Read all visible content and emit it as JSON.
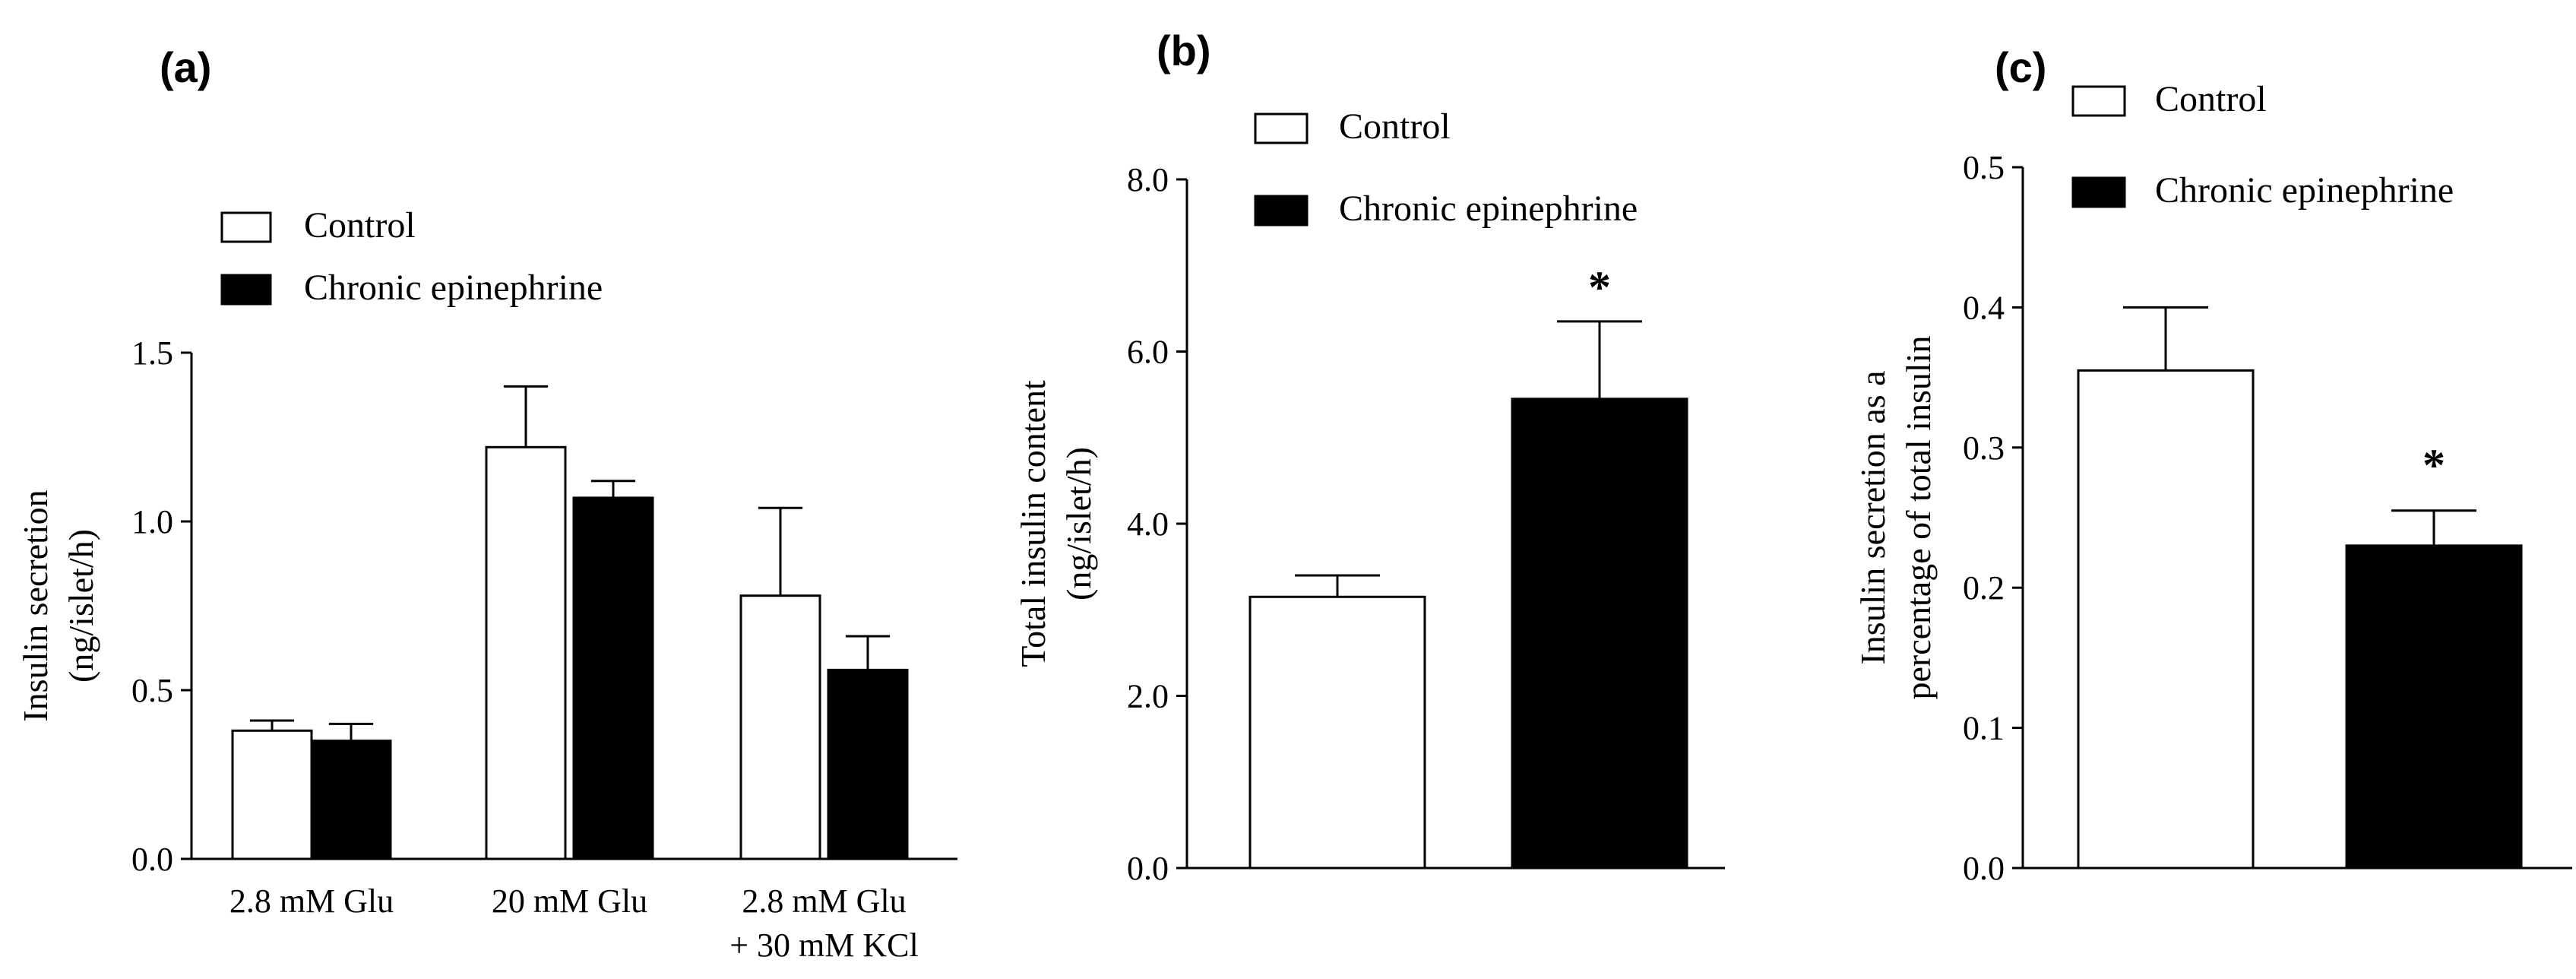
{
  "chart_data": [
    {
      "type": "bar",
      "panel": "(a)",
      "categories": [
        [
          "2.8 mM Glu"
        ],
        [
          "20 mM Glu"
        ],
        [
          "2.8 mM Glu",
          "+ 30 mM KCl"
        ]
      ],
      "ylabel": [
        "Insulin secretion",
        "(ng/islet/h)"
      ],
      "xlabel": "",
      "ylim": [
        0,
        1.5
      ],
      "yticks": [
        "0.0",
        "0.5",
        "1.0",
        "1.5"
      ],
      "legend": {
        "placement": "top-left"
      },
      "series": [
        {
          "name": "Control",
          "fill": "#ffffff",
          "values": [
            0.38,
            1.22,
            0.78
          ],
          "errors": [
            0.03,
            0.18,
            0.26
          ]
        },
        {
          "name": "Chronic epinephrine",
          "fill": "#000000",
          "values": [
            0.35,
            1.07,
            0.56
          ],
          "errors": [
            0.05,
            0.05,
            0.1
          ]
        }
      ],
      "annotations": []
    },
    {
      "type": "bar",
      "panel": "(b)",
      "categories": [
        [
          "Control"
        ],
        [
          "Chronic epinephrine"
        ]
      ],
      "ylabel": [
        "Total insulin content",
        "(ng/islet/h)"
      ],
      "xlabel": "",
      "ylim": [
        0,
        8
      ],
      "yticks": [
        "0.0",
        "2.0",
        "4.0",
        "6.0",
        "8.0"
      ],
      "legend": {
        "placement": "top-left"
      },
      "series": [
        {
          "name": "Control",
          "fill": "#ffffff",
          "values": [
            3.15,
            null
          ],
          "errors": [
            0.25,
            null
          ]
        },
        {
          "name": "Chronic epinephrine",
          "fill": "#000000",
          "values": [
            null,
            5.45
          ],
          "errors": [
            null,
            0.9
          ]
        }
      ],
      "annotations": [
        {
          "text": "*",
          "category_index": 1
        }
      ]
    },
    {
      "type": "bar",
      "panel": "(c)",
      "categories": [
        [
          "Control"
        ],
        [
          "Chronic epinephrine"
        ]
      ],
      "ylabel": [
        "Insulin secretion as a",
        "percentage of total insulin"
      ],
      "xlabel": "",
      "ylim": [
        0,
        0.5
      ],
      "yticks": [
        "0.0",
        "0.1",
        "0.2",
        "0.3",
        "0.4",
        "0.5"
      ],
      "legend": {
        "placement": "top-left"
      },
      "series": [
        {
          "name": "Control",
          "fill": "#ffffff",
          "values": [
            0.355,
            null
          ],
          "errors": [
            0.045,
            null
          ]
        },
        {
          "name": "Chronic epinephrine",
          "fill": "#000000",
          "values": [
            null,
            0.23
          ],
          "errors": [
            null,
            0.025
          ]
        }
      ],
      "annotations": [
        {
          "text": "*",
          "category_index": 1
        }
      ]
    }
  ]
}
